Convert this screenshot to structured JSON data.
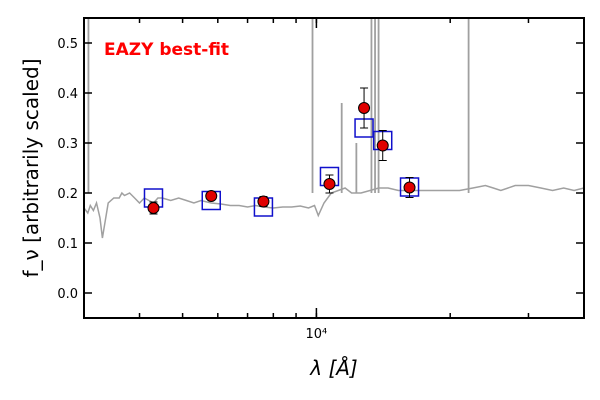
{
  "chart_data": {
    "type": "scatter",
    "title": "",
    "xlabel": "λ [Å]",
    "ylabel": "f_ν [arbitrarily scaled]",
    "xscale": "log",
    "xlim": [
      3000,
      40000
    ],
    "ylim": [
      -0.05,
      0.55
    ],
    "grid": false,
    "annotation": "EAZY best-fit",
    "x_ticks": [
      {
        "value": 10000,
        "label": "10⁴"
      }
    ],
    "y_ticks": [
      {
        "value": 0.0,
        "label": "0.0"
      },
      {
        "value": 0.1,
        "label": "0.1"
      },
      {
        "value": 0.2,
        "label": "0.2"
      },
      {
        "value": 0.3,
        "label": "0.3"
      },
      {
        "value": 0.4,
        "label": "0.4"
      },
      {
        "value": 0.5,
        "label": "0.5"
      }
    ],
    "series": [
      {
        "kind": "model-spectrum",
        "color": "#a0a0a0",
        "x": [
          3000,
          3060,
          3100,
          3150,
          3200,
          3260,
          3300,
          3400,
          3500,
          3600,
          3650,
          3700,
          3800,
          3900,
          4000,
          4100,
          4200,
          4300,
          4400,
          4500,
          4700,
          4900,
          5100,
          5300,
          5500,
          5800,
          6100,
          6400,
          6700,
          7000,
          7300,
          7600,
          8000,
          8400,
          8800,
          9200,
          9600,
          9900,
          10100,
          10400,
          10800,
          11200,
          11600,
          12000,
          12600,
          13200,
          13800,
          14500,
          15300,
          16200,
          17200,
          18300,
          19500,
          21000,
          22500,
          24000,
          25000,
          26000,
          28000,
          30000,
          32000,
          34000,
          36000,
          38000,
          40000
        ],
        "y": [
          0.17,
          0.16,
          0.175,
          0.165,
          0.18,
          0.15,
          0.11,
          0.18,
          0.19,
          0.19,
          0.2,
          0.195,
          0.2,
          0.19,
          0.18,
          0.19,
          0.185,
          0.18,
          0.19,
          0.19,
          0.185,
          0.19,
          0.185,
          0.18,
          0.185,
          0.18,
          0.178,
          0.175,
          0.175,
          0.172,
          0.175,
          0.172,
          0.17,
          0.172,
          0.172,
          0.174,
          0.17,
          0.175,
          0.155,
          0.18,
          0.2,
          0.205,
          0.21,
          0.2,
          0.2,
          0.205,
          0.21,
          0.21,
          0.205,
          0.205,
          0.205,
          0.205,
          0.205,
          0.205,
          0.21,
          0.215,
          0.21,
          0.205,
          0.215,
          0.215,
          0.21,
          0.205,
          0.21,
          0.205,
          0.21
        ]
      },
      {
        "kind": "emission-lines",
        "color": "#a0a0a0",
        "lines": [
          {
            "x": 3070,
            "y": 0.55
          },
          {
            "x": 9800,
            "y": 0.55
          },
          {
            "x": 11400,
            "y": 0.38
          },
          {
            "x": 12300,
            "y": 0.3
          },
          {
            "x": 13300,
            "y": 0.55
          },
          {
            "x": 13550,
            "y": 0.55
          },
          {
            "x": 13800,
            "y": 0.55
          },
          {
            "x": 22000,
            "y": 0.55
          }
        ]
      },
      {
        "kind": "model-photometry",
        "marker": "open-square",
        "color": "#1010cc",
        "x": [
          4300,
          5800,
          7600,
          10700,
          12800,
          14100,
          16200
        ],
        "y": [
          0.19,
          0.185,
          0.172,
          0.233,
          0.33,
          0.305,
          0.212
        ]
      },
      {
        "kind": "observed-photometry",
        "marker": "filled-circle",
        "color": "#e00000",
        "x": [
          4300,
          5800,
          7600,
          10700,
          12800,
          14100,
          16200
        ],
        "y": [
          0.17,
          0.194,
          0.183,
          0.218,
          0.37,
          0.295,
          0.211
        ],
        "yerr": [
          0.012,
          0.008,
          0.01,
          0.018,
          0.04,
          0.03,
          0.02
        ]
      }
    ]
  }
}
